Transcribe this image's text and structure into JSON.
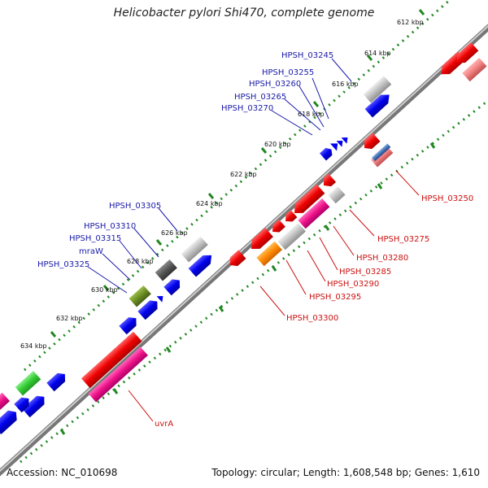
{
  "title": "Helicobacter pylori Shi470, complete genome",
  "footer": {
    "accession": "Accession: NC_010698",
    "summary": "Topology: circular; Length: 1,608,548 bp; Genes: 1,610"
  },
  "scale_ticks": [
    "612 kbp",
    "614 kbp",
    "616 kbp",
    "618 kbp",
    "620 kbp",
    "622 kbp",
    "624 kbp",
    "626 kbp",
    "628 kbp",
    "630 kbp",
    "632 kbp",
    "634 kbp"
  ],
  "gene_labels_forward": [
    "HPSH_03245",
    "HPSH_03255",
    "HPSH_03260",
    "HPSH_03265",
    "HPSH_03270",
    "HPSH_03305",
    "HPSH_03310",
    "HPSH_03315",
    "mraW",
    "HPSH_03325"
  ],
  "gene_labels_reverse": [
    "HPSH_03250",
    "HPSH_03275",
    "HPSH_03280",
    "HPSH_03285",
    "HPSH_03290",
    "HPSH_03295",
    "HPSH_03300",
    "uvrA"
  ],
  "colors": {
    "forward_cds": "#0000ee",
    "reverse_cds": "#ee0000",
    "reverse_feature": "#ee1188",
    "grey_feature": "#bbbbbb",
    "dark_feature": "#555555",
    "olive_feature": "#6b8e23",
    "green_feature": "#33cc33",
    "orange_feature": "#ff8800",
    "salmon_feature": "#f08080",
    "backbone": "#888888",
    "tick_dots": "#228822"
  }
}
